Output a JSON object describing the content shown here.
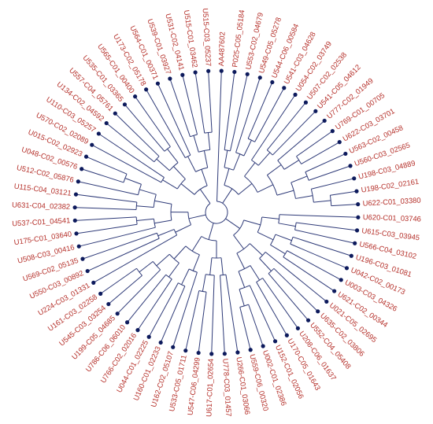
{
  "tree": {
    "label_color": "#b5302a",
    "branch_color": "#2e3a78",
    "node_color": "#0d1a5c",
    "center_ref": "AA487602",
    "leaves": [
      "AA487602",
      "P025-C05_05184",
      "U553-C02_04679",
      "U549-C05_05278",
      "U544-C06_00584",
      "U541-C03_04628",
      "U054-C02_03749",
      "U507-C02_02538",
      "U541-C05_04612",
      "U777-C02_01949",
      "U769-C01_00705",
      "U622-C03_03701",
      "U563-C02_00458",
      "U560-C03_02565",
      "U198-C03_04889",
      "U198-C02_02161",
      "U622-C01_03380",
      "U620-C01_03746",
      "U615-C03_03945",
      "U566-C04_03102",
      "U196-C03_01081",
      "U042-C02_00173",
      "U003-C03_04326",
      "U621-C02_00344",
      "U021-C05_02695",
      "U635-C02_03806",
      "U552-C04_05408",
      "U208-C06_01637",
      "U170-C05_01643",
      "U152-C01_02056",
      "U002-C01_02386",
      "U559-C06_00320",
      "U266-C01_03066",
      "U778-C03_01457",
      "U617-C01_02654",
      "U547-C06_04299",
      "U533-C05_01711",
      "U162-C02_05107",
      "U160-C01_02233",
      "U044-C01_02225",
      "U766-C02_02016",
      "U786-C06_06010",
      "U199-C05_04685",
      "U545-C03_03254",
      "U161-C03_02258",
      "U224-C03_01331",
      "U550-C03_00892",
      "U569-C02_05135",
      "U508-C03_00416",
      "U175-C01_03640",
      "U537-C01_04541",
      "U631-C04_02382",
      "U115-C04_03121",
      "U512-C02_05876",
      "U048-C02_00576",
      "U015-C02_02923",
      "U570-C02_02089",
      "U110-C03_05257",
      "U134-C02_04592",
      "U557-C04_05761",
      "U535-C01_03365",
      "U565-C01_00400",
      "U173-C02_05178",
      "U564-C01_00371",
      "U539-C01_03927",
      "U531-C02_04141",
      "U515-C01_03462",
      "U515-C03_05237"
    ]
  }
}
